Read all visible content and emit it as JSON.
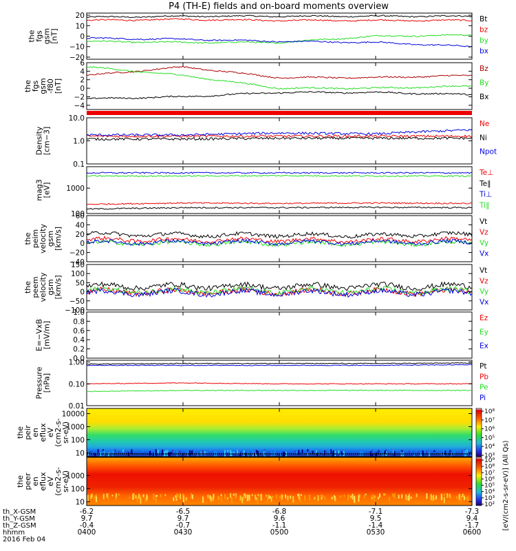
{
  "title": "P4 (TH-E) fields and on-board moments overview",
  "footer": {
    "row_labels": [
      "th_X-GSM",
      "th_Y-GSM",
      "th_Z-GSM",
      "hhmm",
      "2016 Feb 04"
    ],
    "x_gsm": [
      "-6.2",
      "-6.5",
      "-6.8",
      "-7.1",
      "-7.3"
    ],
    "y_gsm": [
      "9.7",
      "9.7",
      "9.6",
      "9.5",
      "9.4"
    ],
    "z_gsm": [
      "-0.4",
      "-0.7",
      "-1.1",
      "-1.4",
      "-1.7"
    ],
    "hhmm": [
      "0400",
      "0430",
      "0500",
      "0530",
      "0600"
    ]
  },
  "colors": {
    "black": "#000000",
    "red": "#ee0000",
    "green": "#22dd22",
    "blue": "#0000dd",
    "dark_red": "#aa0000"
  },
  "chart_data": [
    {
      "type": "line",
      "ylabel": "the\nfgs\ngsm\n[nT]",
      "yticks": [
        "20",
        "10",
        "0",
        "−10",
        "−20"
      ],
      "ylim": [
        -22,
        22
      ],
      "x": [
        "0400",
        "0430",
        "0500",
        "0530",
        "0600"
      ],
      "legend": [
        "Bt",
        "bz",
        "by",
        "bx"
      ],
      "series": [
        {
          "name": "Bt",
          "values": [
            18,
            19,
            19,
            19,
            19
          ]
        },
        {
          "name": "bz",
          "values": [
            15,
            16,
            15,
            15,
            15
          ]
        },
        {
          "name": "by",
          "values": [
            -5,
            -6,
            -6,
            0,
            1
          ]
        },
        {
          "name": "bx",
          "values": [
            -2,
            -3,
            -5,
            -6,
            -10
          ]
        }
      ]
    },
    {
      "type": "line",
      "ylabel": "the\nfgs\ngsm\n-f80\n[nT]",
      "yticks": [
        "6",
        "4",
        "2",
        "0",
        "−2",
        "−4"
      ],
      "ylim": [
        -5,
        6
      ],
      "legend": [
        "Bz",
        "By",
        "Bx"
      ],
      "series": [
        {
          "name": "Bz",
          "values": [
            3,
            5,
            2.5,
            2.5,
            3
          ]
        },
        {
          "name": "By",
          "values": [
            5,
            3,
            0,
            0,
            0.5
          ]
        },
        {
          "name": "Bx",
          "values": [
            -2.5,
            -2,
            -1,
            -1,
            -1.5
          ]
        }
      ]
    },
    {
      "type": "line",
      "ylabel": "Density\n[cm−3]",
      "yticks": [
        "10.0",
        "1.0",
        "0.1"
      ],
      "ylim": [
        0.1,
        10
      ],
      "log": true,
      "legend": [
        "Ne",
        "Ni",
        "Npot"
      ],
      "series": [
        {
          "name": "Ne",
          "values": [
            1.6,
            1.6,
            1.6,
            1.6,
            1.6
          ]
        },
        {
          "name": "Ni",
          "values": [
            1.2,
            1.2,
            1.3,
            1.3,
            1.3
          ]
        },
        {
          "name": "Npot",
          "values": [
            1.8,
            1.8,
            2.2,
            2.0,
            3.0
          ]
        }
      ]
    },
    {
      "type": "line",
      "ylabel": "mag3\n[eV]",
      "yticks": [
        "1000",
        "100"
      ],
      "ylim": [
        100,
        7000
      ],
      "log": true,
      "legend": [
        "Te⊥",
        "Te∥",
        "Ti⊥",
        "Ti∥"
      ],
      "series": [
        {
          "name": "Te⊥",
          "values": [
            230,
            260,
            250,
            260,
            250
          ]
        },
        {
          "name": "Te∥",
          "values": [
            150,
            170,
            170,
            175,
            170
          ]
        },
        {
          "name": "Ti⊥",
          "values": [
            4000,
            4000,
            4000,
            4000,
            4000
          ]
        },
        {
          "name": "Ti∥",
          "values": [
            3000,
            3000,
            3100,
            3000,
            3000
          ]
        }
      ]
    },
    {
      "type": "line",
      "ylabel": "the\npeim\nvelocity\ngsm\n[km/s]",
      "yticks": [
        "60",
        "40",
        "20",
        "0",
        "−20",
        "−40"
      ],
      "ylim": [
        -40,
        60
      ],
      "legend": [
        "Vt",
        "Vz",
        "Vy",
        "Vx"
      ],
      "series": [
        {
          "name": "Vt",
          "values": [
            20,
            18,
            18,
            17,
            20
          ]
        },
        {
          "name": "Vz",
          "values": [
            8,
            7,
            7,
            6,
            8
          ]
        },
        {
          "name": "Vy",
          "values": [
            0,
            0,
            0,
            0,
            0
          ]
        },
        {
          "name": "Vx",
          "values": [
            2,
            2,
            2,
            2,
            2
          ]
        }
      ]
    },
    {
      "type": "line",
      "ylabel": "the\npeem\nvelocity\ngsm\n[km/s]",
      "yticks": [
        "150",
        "100",
        "50",
        "0",
        "−50",
        "−100"
      ],
      "ylim": [
        -100,
        150
      ],
      "legend": [
        "Vt",
        "Vz",
        "Vy",
        "Vx"
      ],
      "series": [
        {
          "name": "Vt",
          "values": [
            30,
            30,
            30,
            30,
            30
          ]
        },
        {
          "name": "Vz",
          "values": [
            0,
            0,
            0,
            0,
            0
          ]
        },
        {
          "name": "Vy",
          "values": [
            5,
            5,
            5,
            5,
            5
          ]
        },
        {
          "name": "Vx",
          "values": [
            -5,
            -5,
            -5,
            -5,
            -5
          ]
        }
      ]
    },
    {
      "type": "line",
      "ylabel": "E=−VxB\n[mV/m]",
      "yticks": [
        "1.0",
        "0.8",
        "0.6",
        "0.4",
        "0.2",
        "0.0"
      ],
      "ylim": [
        0,
        1
      ],
      "legend": [
        "Ez",
        "Ey",
        "Ex"
      ],
      "series": []
    },
    {
      "type": "line",
      "ylabel": "Pressure\n[nPa]",
      "yticks": [
        "1.00",
        "0.10",
        "0.01"
      ],
      "ylim": [
        0.01,
        1.2
      ],
      "log": true,
      "legend": [
        "Pt",
        "Pb",
        "Pe",
        "Pi"
      ],
      "series": [
        {
          "name": "Pt",
          "values": [
            0.8,
            0.85,
            0.85,
            0.85,
            0.9
          ]
        },
        {
          "name": "Pb",
          "values": [
            0.1,
            0.11,
            0.1,
            0.1,
            0.1
          ]
        },
        {
          "name": "Pe",
          "values": [
            0.045,
            0.05,
            0.05,
            0.05,
            0.05
          ]
        },
        {
          "name": "Pi",
          "values": [
            0.7,
            0.7,
            0.7,
            0.7,
            0.75
          ]
        }
      ]
    },
    {
      "type": "heatmap",
      "ylabel": "the\npeir\nen\neflux\neV\n(cm2-s-\nsr-eV)",
      "yticks": [
        "10000",
        "1000",
        "100",
        "10"
      ],
      "ylim": [
        5,
        25000
      ],
      "colorbar_ticks": [
        "10⁸",
        "10⁷",
        "10⁶",
        "10⁵",
        "10⁴",
        "10³"
      ],
      "colorbar_label": "[eV/(cm2-s-sr-eV)] (All Qs)"
    },
    {
      "type": "heatmap",
      "ylabel": "the\npeer\nen\neflux\neV\n(cm2-s-\nsr-eV)",
      "yticks": [
        "1000",
        "100",
        "10"
      ],
      "ylim": [
        5,
        25000
      ],
      "colorbar_ticks": [
        "10⁹",
        "10⁸",
        "10⁷",
        "10⁶",
        "10⁵",
        "10⁴",
        "10³",
        "10²"
      ],
      "colorbar_label": "[eV/(cm2-s-sr-eV)] (All Qs)"
    }
  ]
}
